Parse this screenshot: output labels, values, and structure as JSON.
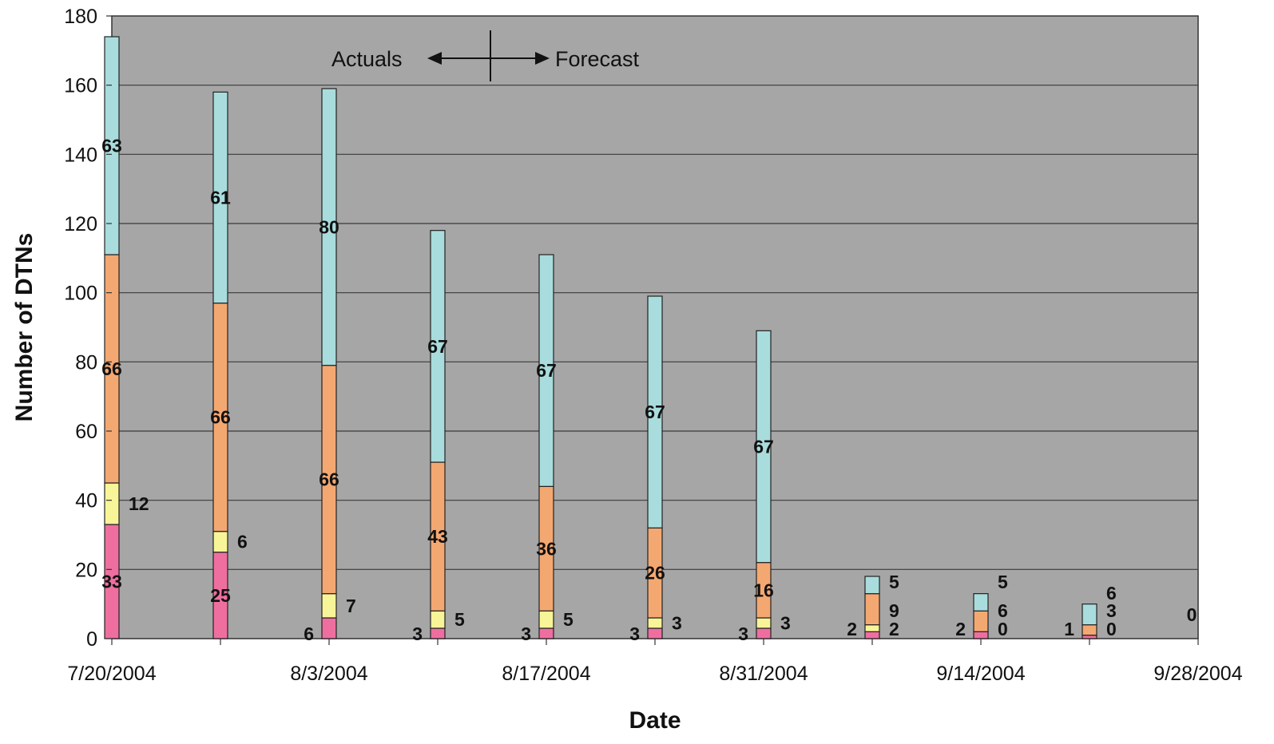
{
  "chart_data": {
    "type": "bar",
    "stacked": true,
    "x": [
      "7/20/2004",
      "7/27/2004",
      "8/3/2004",
      "8/10/2004",
      "8/17/2004",
      "8/24/2004",
      "8/31/2004",
      "9/7/2004",
      "9/14/2004",
      "9/21/2004",
      "9/28/2004"
    ],
    "x_tick_labels": [
      "7/20/2004",
      "8/3/2004",
      "8/17/2004",
      "8/31/2004",
      "9/14/2004",
      "9/28/2004"
    ],
    "series": [
      {
        "color": "#ee6f9f",
        "values": [
          33,
          25,
          6,
          3,
          3,
          3,
          3,
          2,
          2,
          1,
          0
        ],
        "labels": [
          "33",
          "25",
          "6",
          "3",
          "3",
          "3",
          "3",
          "2",
          "2",
          "1",
          "0"
        ]
      },
      {
        "color": "#f7f597",
        "values": [
          12,
          6,
          7,
          5,
          5,
          3,
          3,
          2,
          0,
          0,
          0
        ],
        "labels": [
          "12",
          "6",
          "7",
          "5",
          "5",
          "3",
          "3",
          "2",
          "0",
          "0",
          ""
        ]
      },
      {
        "color": "#f4a871",
        "values": [
          66,
          66,
          66,
          43,
          36,
          26,
          16,
          9,
          6,
          3,
          0
        ],
        "labels": [
          "66",
          "66",
          "66",
          "43",
          "36",
          "26",
          "16",
          "9",
          "6",
          "3",
          ""
        ]
      },
      {
        "color": "#a9dcdd",
        "values": [
          63,
          61,
          80,
          67,
          67,
          67,
          67,
          5,
          5,
          6,
          0
        ],
        "labels": [
          "63",
          "61",
          "80",
          "67",
          "67",
          "67",
          "67",
          "5",
          "5",
          "6",
          ""
        ]
      }
    ],
    "xlabel": "Date",
    "ylabel": "Number of DTNs",
    "ylim": [
      0,
      180
    ],
    "yticks": [
      0,
      20,
      40,
      60,
      80,
      100,
      120,
      140,
      160,
      180
    ],
    "grid": true,
    "legend": "none",
    "annotation": {
      "left": "Actuals",
      "right": "Forecast"
    },
    "plot_background": "#a6a6a6"
  }
}
